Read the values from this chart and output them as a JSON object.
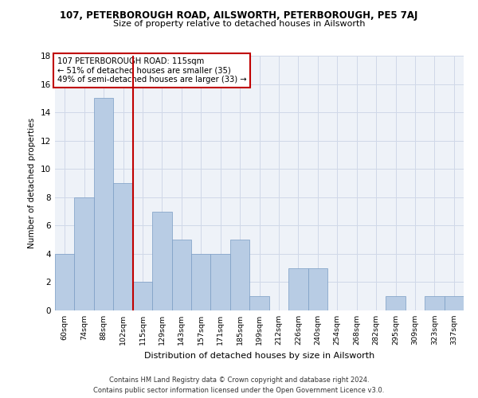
{
  "title_top": "107, PETERBOROUGH ROAD, AILSWORTH, PETERBOROUGH, PE5 7AJ",
  "title_main": "Size of property relative to detached houses in Ailsworth",
  "xlabel": "Distribution of detached houses by size in Ailsworth",
  "ylabel": "Number of detached properties",
  "footer_line1": "Contains HM Land Registry data © Crown copyright and database right 2024.",
  "footer_line2": "Contains public sector information licensed under the Open Government Licence v3.0.",
  "annotation_line1": "107 PETERBOROUGH ROAD: 115sqm",
  "annotation_line2": "← 51% of detached houses are smaller (35)",
  "annotation_line3": "49% of semi-detached houses are larger (33) →",
  "bar_categories": [
    "60sqm",
    "74sqm",
    "88sqm",
    "102sqm",
    "115sqm",
    "129sqm",
    "143sqm",
    "157sqm",
    "171sqm",
    "185sqm",
    "199sqm",
    "212sqm",
    "226sqm",
    "240sqm",
    "254sqm",
    "268sqm",
    "282sqm",
    "295sqm",
    "309sqm",
    "323sqm",
    "337sqm"
  ],
  "bar_values": [
    4,
    8,
    15,
    9,
    2,
    7,
    5,
    4,
    4,
    5,
    1,
    0,
    3,
    3,
    0,
    0,
    0,
    1,
    0,
    1,
    1
  ],
  "bar_color": "#b8cce4",
  "bar_edge_color": "#7a9cc4",
  "bar_width": 1.0,
  "vline_idx": 4,
  "vline_color": "#c00000",
  "annotation_box_color": "#c00000",
  "ylim": [
    0,
    18
  ],
  "yticks": [
    0,
    2,
    4,
    6,
    8,
    10,
    12,
    14,
    16,
    18
  ],
  "grid_color": "#d0d8e8",
  "plot_bg_color": "#eef2f8"
}
